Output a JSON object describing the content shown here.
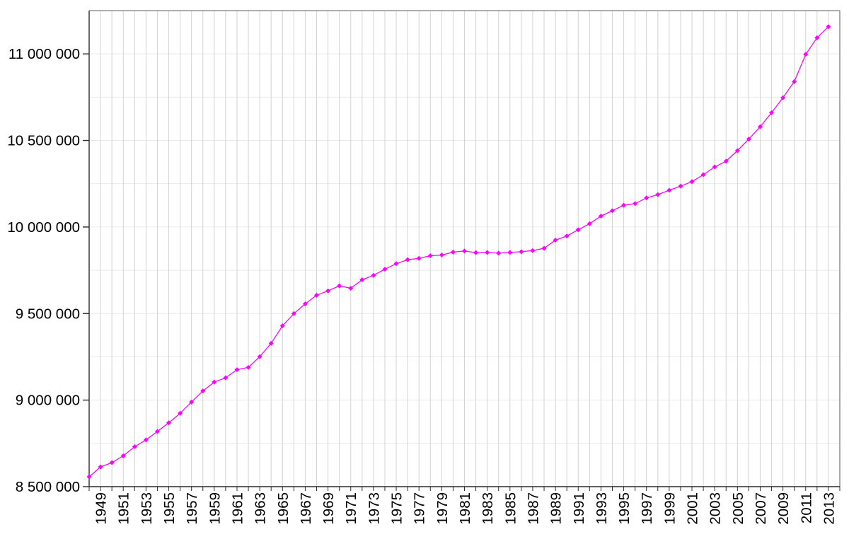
{
  "page": {
    "background": "#ffffff",
    "title": ""
  },
  "chart_data": {
    "type": "line",
    "title": "",
    "xlabel": "",
    "ylabel": "",
    "legend": null,
    "x": [
      1948,
      1949,
      1950,
      1951,
      1952,
      1953,
      1954,
      1955,
      1956,
      1957,
      1958,
      1959,
      1960,
      1961,
      1962,
      1963,
      1964,
      1965,
      1966,
      1967,
      1968,
      1969,
      1970,
      1971,
      1972,
      1973,
      1974,
      1975,
      1976,
      1977,
      1978,
      1979,
      1980,
      1981,
      1982,
      1983,
      1984,
      1985,
      1986,
      1987,
      1988,
      1989,
      1990,
      1991,
      1992,
      1993,
      1994,
      1995,
      1996,
      1997,
      1998,
      1999,
      2000,
      2001,
      2002,
      2003,
      2004,
      2005,
      2006,
      2007,
      2008,
      2009,
      2010,
      2011,
      2012,
      2013
    ],
    "series": [
      {
        "name": "population",
        "color": "#ff00ff",
        "marker": "diamond",
        "values": [
          8557000,
          8614000,
          8639000,
          8678000,
          8731000,
          8770000,
          8819000,
          8869000,
          8924000,
          8989000,
          9053000,
          9104000,
          9129000,
          9176000,
          9189000,
          9251000,
          9328000,
          9429000,
          9500000,
          9556000,
          9606000,
          9631000,
          9660000,
          9646000,
          9695000,
          9721000,
          9756000,
          9788000,
          9811000,
          9819000,
          9834000,
          9838000,
          9855000,
          9861000,
          9852000,
          9853000,
          9849000,
          9853000,
          9857000,
          9864000,
          9877000,
          9924000,
          9948000,
          9984000,
          10019000,
          10063000,
          10094000,
          10126000,
          10135000,
          10168000,
          10187000,
          10212000,
          10236000,
          10262000,
          10302000,
          10347000,
          10380000,
          10441000,
          10508000,
          10579000,
          10660000,
          10747000,
          10840000,
          10997000,
          11093000,
          11157000
        ]
      }
    ],
    "xlim": [
      1948,
      2014
    ],
    "ylim": [
      8500000,
      11250000
    ],
    "y_ticks": [
      {
        "value": 8500000,
        "label": "8 500 000"
      },
      {
        "value": 9000000,
        "label": "9 000 000"
      },
      {
        "value": 9500000,
        "label": "9 500 000"
      },
      {
        "value": 10000000,
        "label": "10 000 000"
      },
      {
        "value": 10500000,
        "label": "10 500 000"
      },
      {
        "value": 11000000,
        "label": "11 000 000"
      }
    ],
    "x_ticks_labeled": [
      1949,
      1951,
      1953,
      1955,
      1957,
      1959,
      1961,
      1963,
      1965,
      1967,
      1969,
      1971,
      1973,
      1975,
      1977,
      1979,
      1981,
      1983,
      1985,
      1987,
      1989,
      1991,
      1993,
      1995,
      1997,
      1999,
      2001,
      2003,
      2005,
      2007,
      2009,
      2011,
      2013
    ],
    "x_tick_every_year": true,
    "x_label_rotation": -90,
    "grid": {
      "horizontal_step": 250000,
      "vertical_every_year": true,
      "horizontal_color": "#e9e9e9",
      "vertical_color": "#d3d3d3"
    },
    "frame": {
      "axis_color": "#2b2b2b",
      "top_right_color": "#949494"
    }
  }
}
